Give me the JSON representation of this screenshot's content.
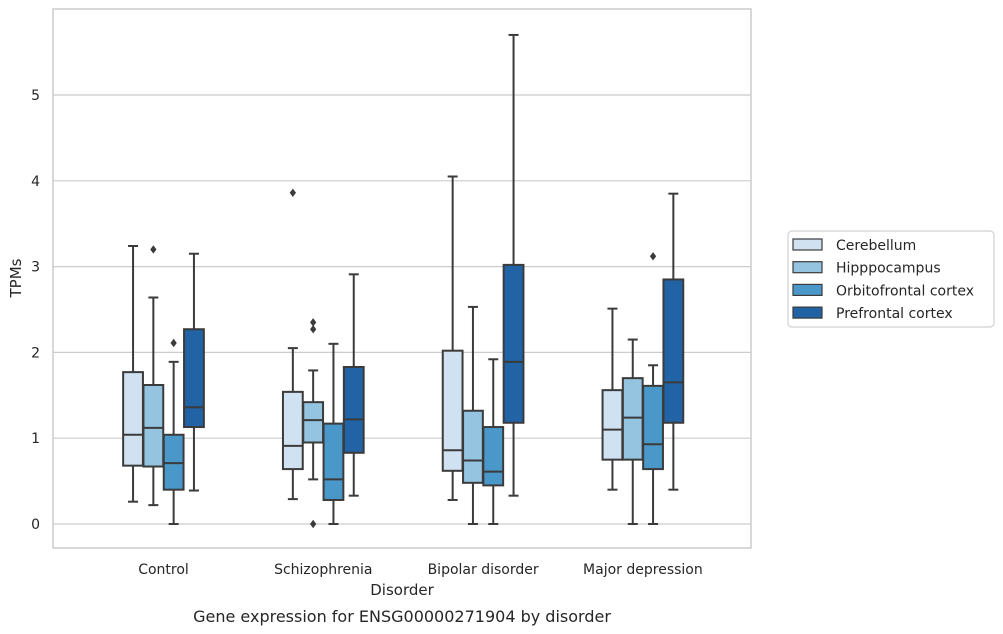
{
  "chart_data": {
    "type": "boxplot",
    "xlabel": "Disorder",
    "ylabel": "TPMs",
    "caption": "Gene expression for ENSG00000271904 by disorder",
    "ylim": [
      -0.28,
      6.0
    ],
    "yticks": [
      0,
      1,
      2,
      3,
      4,
      5
    ],
    "grid": true,
    "legend_position": "right",
    "categories": [
      "Control",
      "Schizophrenia",
      "Bipolar disorder",
      "Major depression"
    ],
    "series": [
      {
        "name": "Cerebellum",
        "color": "#d0e1f2",
        "boxes": [
          {
            "min": 0.26,
            "q1": 0.68,
            "median": 1.04,
            "q3": 1.77,
            "max": 3.24,
            "outliers": []
          },
          {
            "min": 0.29,
            "q1": 0.64,
            "median": 0.91,
            "q3": 1.54,
            "max": 2.05,
            "outliers": [
              3.86
            ]
          },
          {
            "min": 0.28,
            "q1": 0.62,
            "median": 0.86,
            "q3": 2.02,
            "max": 4.05,
            "outliers": []
          },
          {
            "min": 0.4,
            "q1": 0.75,
            "median": 1.1,
            "q3": 1.56,
            "max": 2.51,
            "outliers": []
          }
        ]
      },
      {
        "name": "Hipppocampus",
        "color": "#94c4df",
        "boxes": [
          {
            "min": 0.22,
            "q1": 0.67,
            "median": 1.12,
            "q3": 1.62,
            "max": 2.64,
            "outliers": [
              3.2
            ]
          },
          {
            "min": 0.52,
            "q1": 0.95,
            "median": 1.21,
            "q3": 1.42,
            "max": 1.79,
            "outliers": [
              2.35,
              2.27,
              0.0
            ]
          },
          {
            "min": 0.0,
            "q1": 0.48,
            "median": 0.74,
            "q3": 1.32,
            "max": 2.53,
            "outliers": []
          },
          {
            "min": 0.0,
            "q1": 0.75,
            "median": 1.24,
            "q3": 1.7,
            "max": 2.15,
            "outliers": []
          }
        ]
      },
      {
        "name": "Orbitofrontal cortex",
        "color": "#4a98c9",
        "boxes": [
          {
            "min": 0.0,
            "q1": 0.4,
            "median": 0.71,
            "q3": 1.04,
            "max": 1.89,
            "outliers": [
              2.11
            ]
          },
          {
            "min": 0.0,
            "q1": 0.28,
            "median": 0.52,
            "q3": 1.17,
            "max": 2.1,
            "outliers": []
          },
          {
            "min": 0.0,
            "q1": 0.45,
            "median": 0.61,
            "q3": 1.13,
            "max": 1.92,
            "outliers": []
          },
          {
            "min": 0.0,
            "q1": 0.64,
            "median": 0.93,
            "q3": 1.61,
            "max": 1.85,
            "outliers": [
              3.12
            ]
          }
        ]
      },
      {
        "name": "Prefrontal cortex",
        "color": "#2163a5",
        "boxes": [
          {
            "min": 0.39,
            "q1": 1.13,
            "median": 1.36,
            "q3": 2.27,
            "max": 3.15,
            "outliers": []
          },
          {
            "min": 0.33,
            "q1": 0.83,
            "median": 1.22,
            "q3": 1.83,
            "max": 2.91,
            "outliers": []
          },
          {
            "min": 0.33,
            "q1": 1.18,
            "median": 1.89,
            "q3": 3.02,
            "max": 5.7,
            "outliers": []
          },
          {
            "min": 0.4,
            "q1": 1.18,
            "median": 1.65,
            "q3": 2.85,
            "max": 3.85,
            "outliers": []
          }
        ]
      }
    ]
  }
}
